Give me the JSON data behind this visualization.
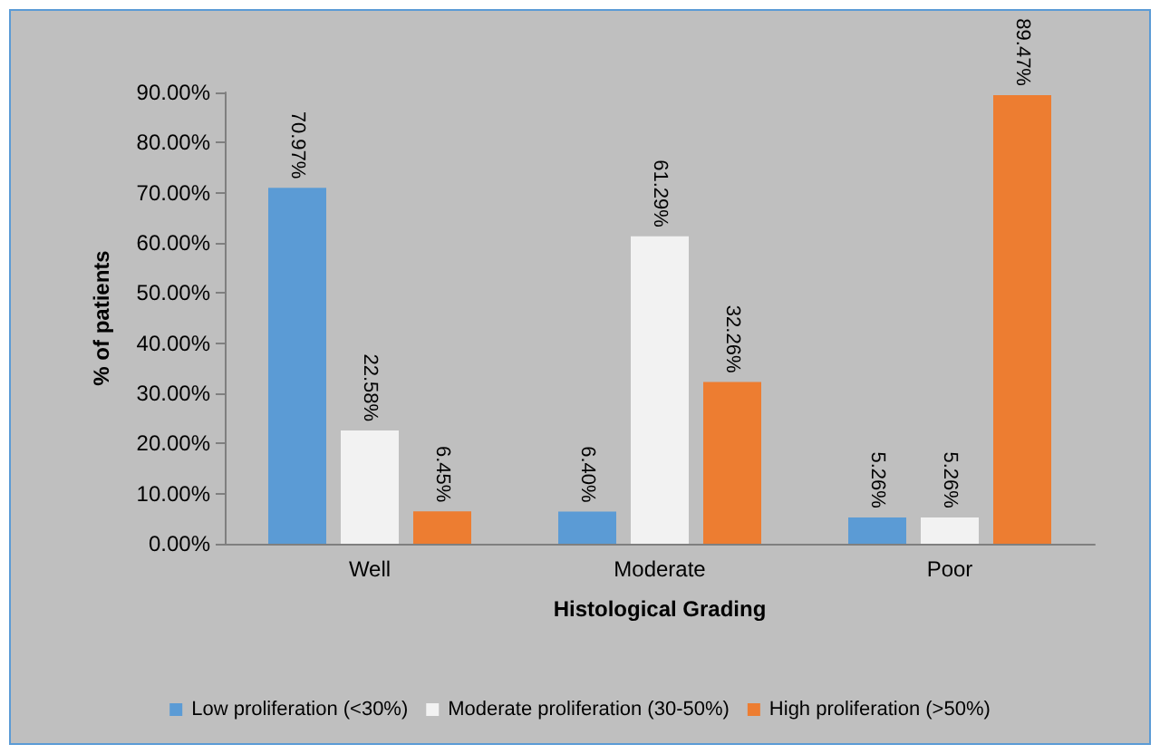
{
  "chart_data": {
    "type": "bar",
    "xlabel": "Histological Grading",
    "ylabel": "% of patients",
    "categories": [
      "Well",
      "Moderate",
      "Poor"
    ],
    "series": [
      {
        "name": "Low proliferation (<30%)",
        "color": "#5b9bd5",
        "values": [
          70.97,
          6.4,
          5.26
        ],
        "value_labels": [
          "70.97%",
          "6.40%",
          "5.26%"
        ]
      },
      {
        "name": "Moderate proliferation (30-50%)",
        "color": "#f2f2f2",
        "values": [
          22.58,
          61.29,
          5.26
        ],
        "value_labels": [
          "22.58%",
          "61.29%",
          "5.26%"
        ]
      },
      {
        "name": "High proliferation (>50%)",
        "color": "#ed7d31",
        "values": [
          6.45,
          32.26,
          89.47
        ],
        "value_labels": [
          "6.45%",
          "32.26%",
          "89.47%"
        ]
      }
    ],
    "ylim": [
      0,
      90
    ],
    "yticks": [
      {
        "value": 0,
        "label": "0.00%"
      },
      {
        "value": 10,
        "label": "10.00%"
      },
      {
        "value": 20,
        "label": "20.00%"
      },
      {
        "value": 30,
        "label": "30.00%"
      },
      {
        "value": 40,
        "label": "40.00%"
      },
      {
        "value": 50,
        "label": "50.00%"
      },
      {
        "value": 60,
        "label": "60.00%"
      },
      {
        "value": 70,
        "label": "70.00%"
      },
      {
        "value": 80,
        "label": "80.00%"
      },
      {
        "value": 90,
        "label": "90.00%"
      }
    ],
    "grid": false,
    "legend": "bottom"
  }
}
